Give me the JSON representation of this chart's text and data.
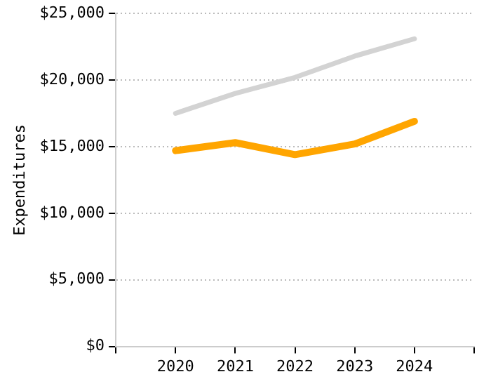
{
  "chart_data": {
    "type": "line",
    "ylabel": "Expenditures",
    "x": [
      2020,
      2021,
      2022,
      2023,
      2024
    ],
    "series": [
      {
        "color": "#d3d3d3",
        "values": [
          17500,
          19000,
          20200,
          21800,
          23100
        ]
      },
      {
        "color": "#ffa500",
        "values": [
          14700,
          15300,
          14400,
          15200,
          16900
        ]
      }
    ],
    "xlim": [
      2019,
      2025
    ],
    "xticks": [
      {
        "value": 2019,
        "label": null
      },
      2020,
      2021,
      2022,
      2023,
      2024,
      {
        "value": 2025,
        "label": null
      }
    ],
    "ylim": [
      0,
      25000
    ],
    "yticks": [
      {
        "value": 0,
        "label": "$0"
      },
      {
        "value": 5000,
        "label": "$5,000"
      },
      {
        "value": 10000,
        "label": "$10,000"
      },
      {
        "value": 15000,
        "label": "$15,000"
      },
      {
        "value": 20000,
        "label": "$20,000"
      },
      {
        "value": 25000,
        "label": "$25,000"
      }
    ],
    "grid": "y",
    "legend": false,
    "marker": "none",
    "line_style": "solid"
  }
}
